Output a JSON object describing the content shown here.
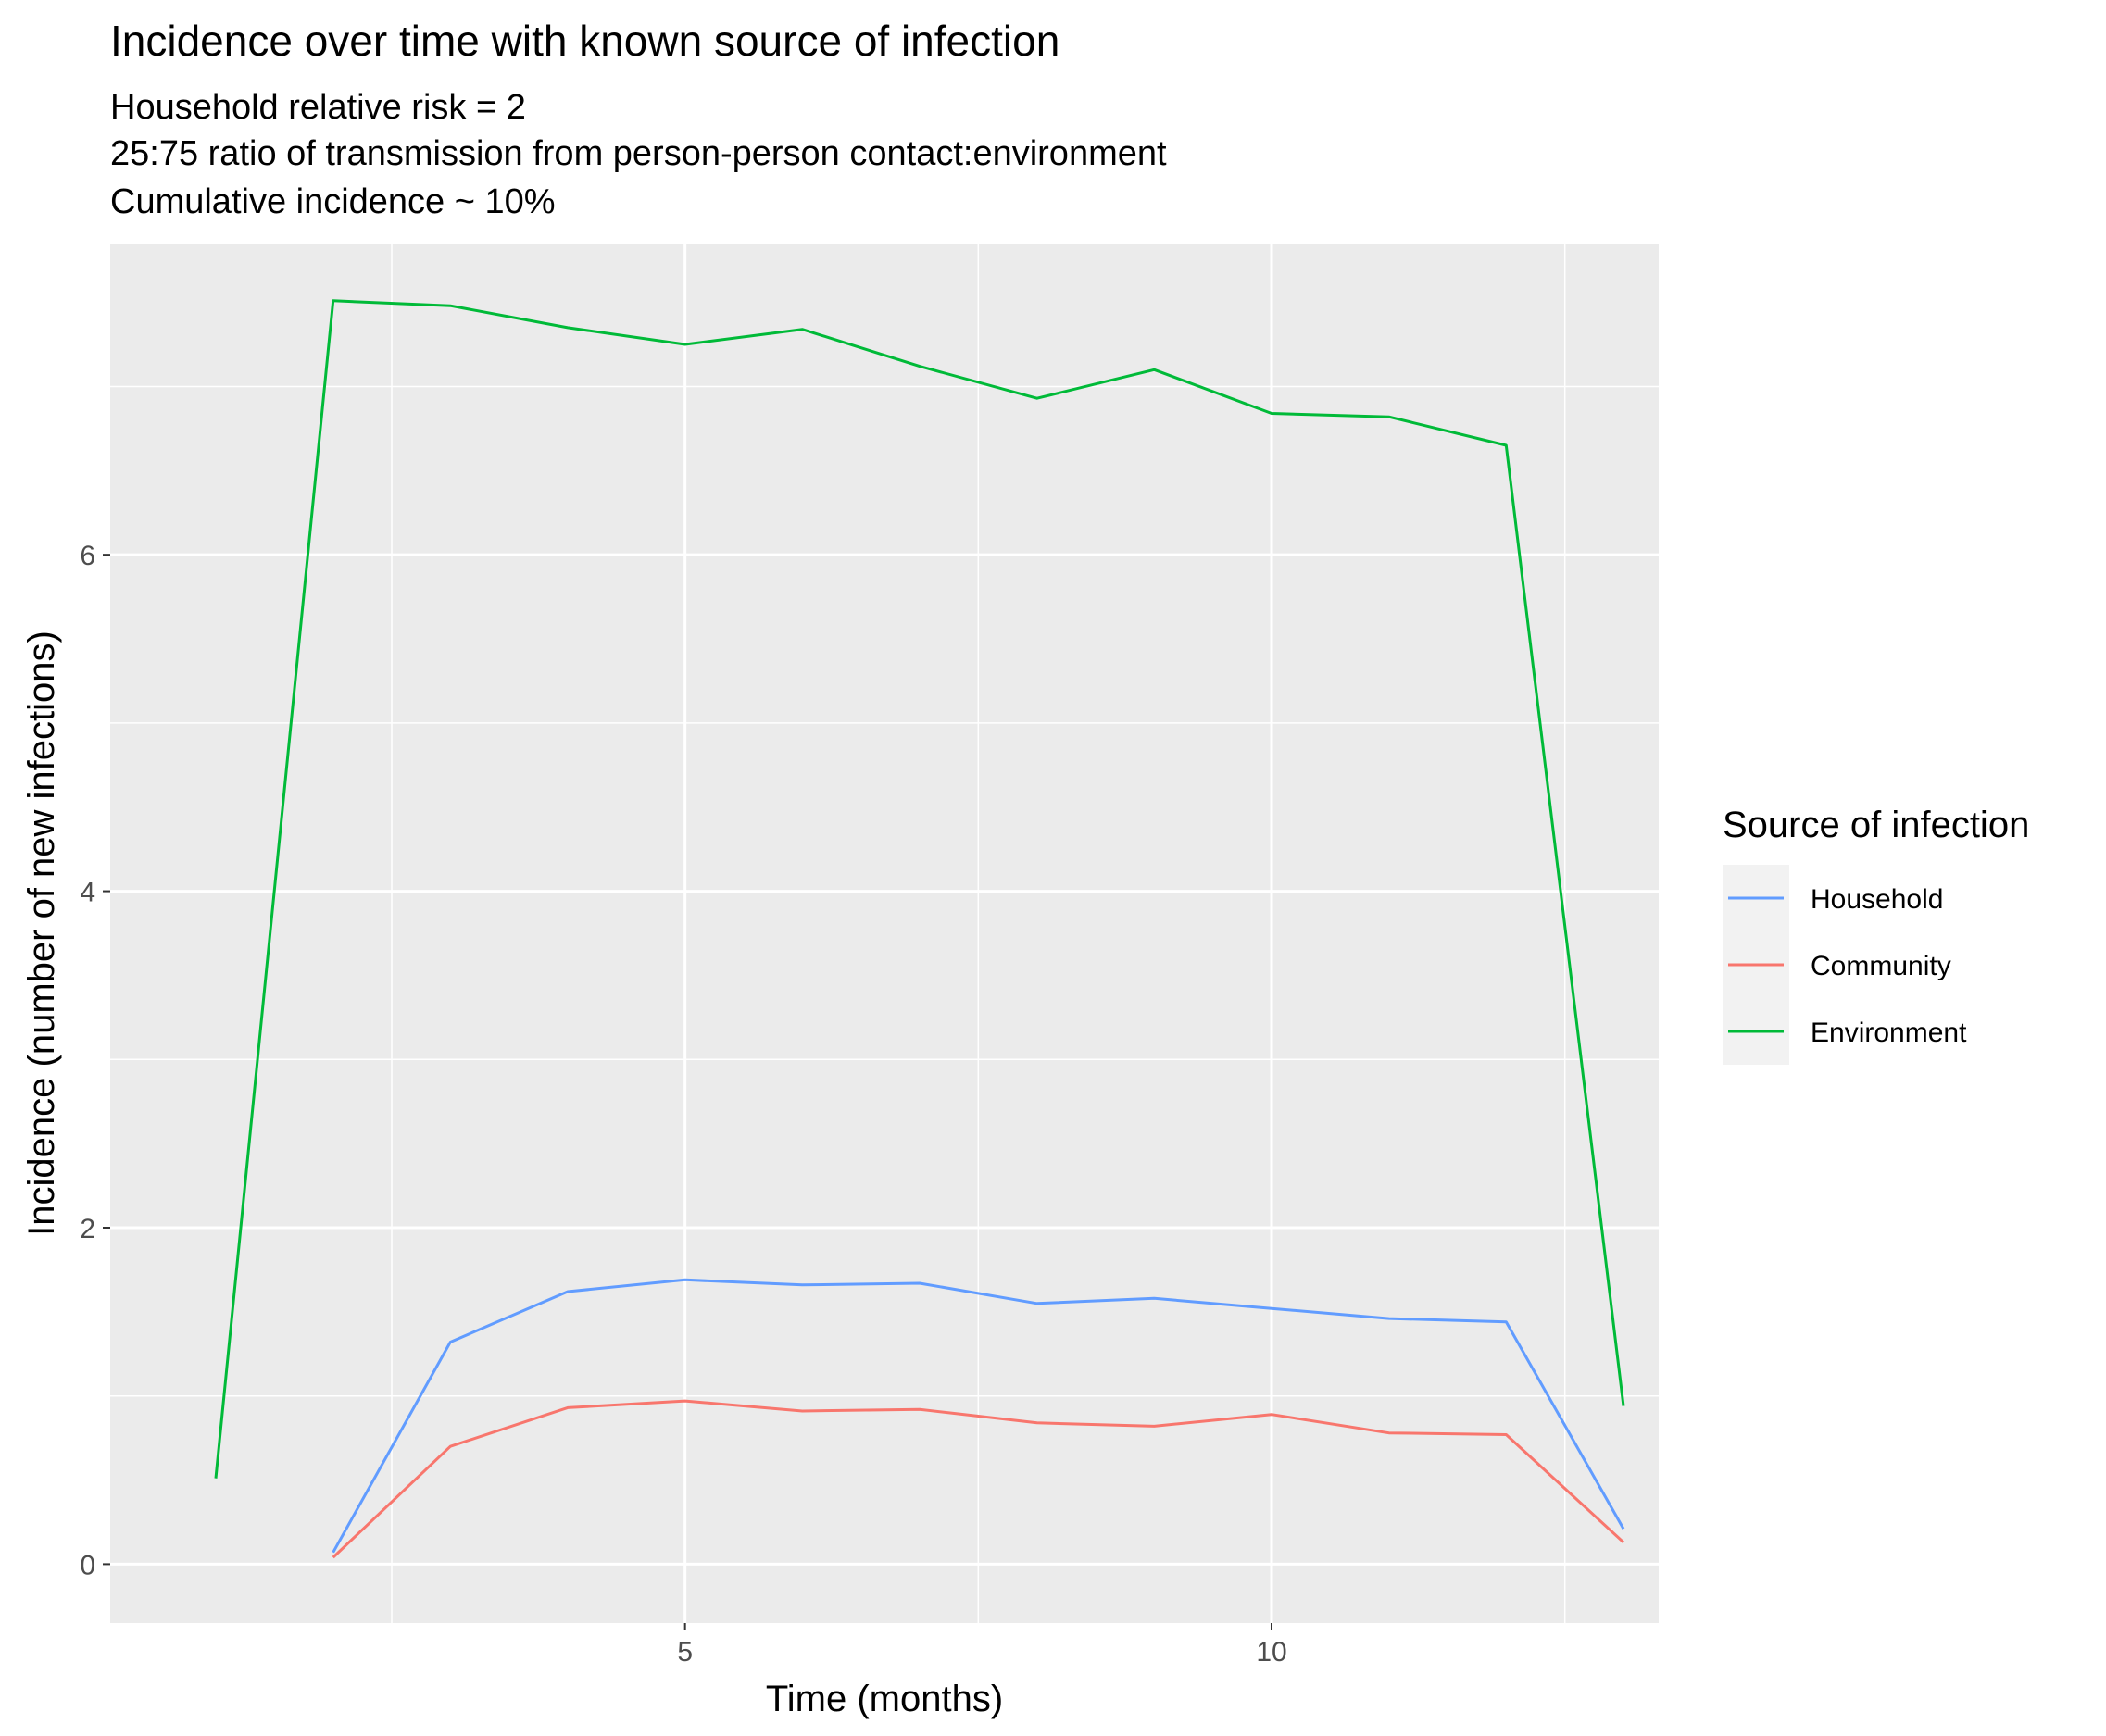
{
  "chart_data": {
    "type": "line",
    "title": "Incidence over time with known source of infection",
    "subtitle_lines": [
      "Household relative risk = 2",
      "25:75 ratio of transmission from person-person contact:environment",
      "Cumulative incidence ~ 10%"
    ],
    "xlabel": "Time (months)",
    "ylabel": "Incidence (number of new infections)",
    "xlim": [
      0.1,
      13.3
    ],
    "ylim": [
      -0.35,
      7.85
    ],
    "x_ticks": [
      5,
      10
    ],
    "x_minor_ticks": [
      2.5,
      7.5,
      12.5
    ],
    "y_ticks": [
      0,
      2,
      4,
      6
    ],
    "y_minor_ticks": [
      1,
      3,
      5,
      7
    ],
    "x_tick_labels": [
      "5",
      "10"
    ],
    "y_tick_labels": [
      "0",
      "2",
      "4",
      "6"
    ],
    "grid": true,
    "legend": {
      "title": "Source of infection",
      "placement": "right",
      "entries": [
        "Household",
        "Community",
        "Environment"
      ]
    },
    "series": [
      {
        "name": "Household",
        "color": "#619CFF",
        "x": [
          2,
          3,
          4,
          5,
          6,
          7,
          8,
          9,
          10,
          11,
          12,
          13
        ],
        "y": [
          0.07,
          1.32,
          1.62,
          1.69,
          1.66,
          1.67,
          1.55,
          1.58,
          1.52,
          1.46,
          1.44,
          0.21
        ]
      },
      {
        "name": "Community",
        "color": "#F8766D",
        "x": [
          2,
          3,
          4,
          5,
          6,
          7,
          8,
          9,
          10,
          11,
          12,
          13
        ],
        "y": [
          0.04,
          0.7,
          0.93,
          0.97,
          0.91,
          0.92,
          0.84,
          0.82,
          0.89,
          0.78,
          0.77,
          0.13
        ]
      },
      {
        "name": "Environment",
        "color": "#00BA38",
        "x": [
          1,
          2,
          3,
          4,
          5,
          6,
          7,
          8,
          9,
          10,
          11,
          12,
          13
        ],
        "y": [
          0.51,
          7.51,
          7.48,
          7.35,
          7.25,
          7.34,
          7.12,
          6.93,
          7.1,
          6.84,
          6.82,
          6.65,
          0.94
        ]
      }
    ]
  }
}
